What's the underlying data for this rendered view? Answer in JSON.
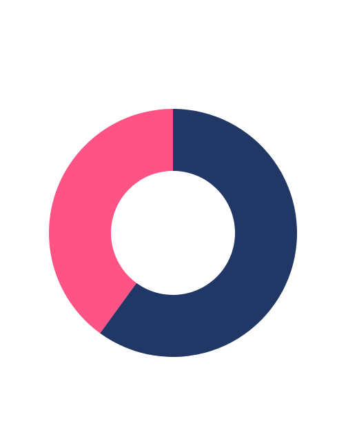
{
  "chart_data": {
    "type": "pie",
    "variant": "donut",
    "categories": [
      "",
      ""
    ],
    "values": [
      60,
      40
    ],
    "colors": [
      "#213866",
      "#fd5385"
    ],
    "start_angle_deg": 0,
    "direction": "clockwise",
    "title": "",
    "legend": "none"
  }
}
